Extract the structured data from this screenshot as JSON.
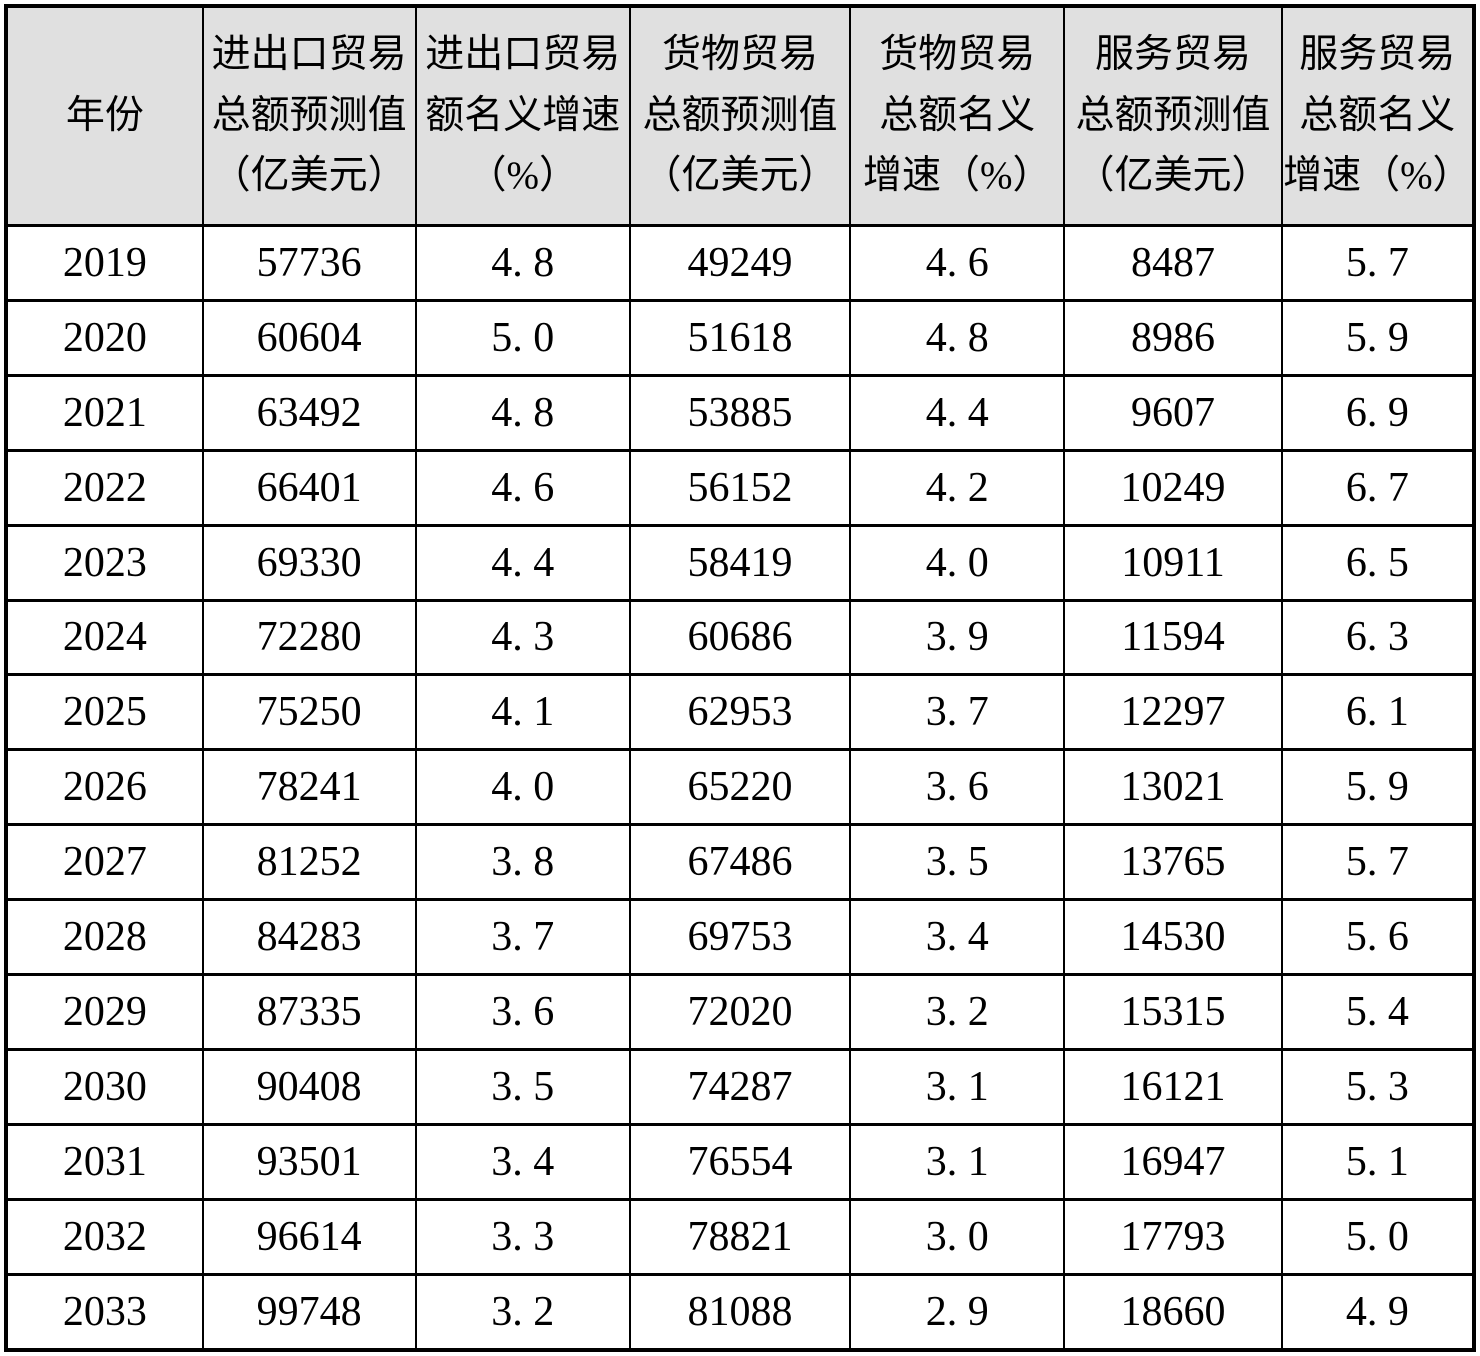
{
  "table": {
    "columns": [
      {
        "id": "year",
        "label": "年份"
      },
      {
        "id": "total_forecast",
        "label": "进出口贸易\n总额预测值\n（亿美元）"
      },
      {
        "id": "total_growth",
        "label": "进出口贸易\n额名义增速\n（%）"
      },
      {
        "id": "goods_forecast",
        "label": "货物贸易\n总额预测值\n（亿美元）"
      },
      {
        "id": "goods_growth",
        "label": "货物贸易\n总额名义\n增速（%）"
      },
      {
        "id": "services_forecast",
        "label": "服务贸易\n总额预测值\n（亿美元）"
      },
      {
        "id": "services_growth",
        "label": "服务贸易\n总额名义\n增速（%）"
      }
    ],
    "col_widths_pct": [
      13.4,
      14.5,
      14.6,
      15.0,
      14.6,
      14.8,
      13.1
    ],
    "rows": [
      [
        "2019",
        "57736",
        "4. 8",
        "49249",
        "4. 6",
        "8487",
        "5. 7"
      ],
      [
        "2020",
        "60604",
        "5. 0",
        "51618",
        "4. 8",
        "8986",
        "5. 9"
      ],
      [
        "2021",
        "63492",
        "4. 8",
        "53885",
        "4. 4",
        "9607",
        "6. 9"
      ],
      [
        "2022",
        "66401",
        "4. 6",
        "56152",
        "4. 2",
        "10249",
        "6. 7"
      ],
      [
        "2023",
        "69330",
        "4. 4",
        "58419",
        "4. 0",
        "10911",
        "6. 5"
      ],
      [
        "2024",
        "72280",
        "4. 3",
        "60686",
        "3. 9",
        "11594",
        "6. 3"
      ],
      [
        "2025",
        "75250",
        "4. 1",
        "62953",
        "3. 7",
        "12297",
        "6. 1"
      ],
      [
        "2026",
        "78241",
        "4. 0",
        "65220",
        "3. 6",
        "13021",
        "5. 9"
      ],
      [
        "2027",
        "81252",
        "3. 8",
        "67486",
        "3. 5",
        "13765",
        "5. 7"
      ],
      [
        "2028",
        "84283",
        "3. 7",
        "69753",
        "3. 4",
        "14530",
        "5. 6"
      ],
      [
        "2029",
        "87335",
        "3. 6",
        "72020",
        "3. 2",
        "15315",
        "5. 4"
      ],
      [
        "2030",
        "90408",
        "3. 5",
        "74287",
        "3. 1",
        "16121",
        "5. 3"
      ],
      [
        "2031",
        "93501",
        "3. 4",
        "76554",
        "3. 1",
        "16947",
        "5. 1"
      ],
      [
        "2032",
        "96614",
        "3. 3",
        "78821",
        "3. 0",
        "17793",
        "5. 0"
      ],
      [
        "2033",
        "99748",
        "3. 2",
        "81088",
        "2. 9",
        "18660",
        "4. 9"
      ]
    ],
    "colors": {
      "header_bg": "#e0e0e0",
      "body_bg": "#ffffff",
      "border": "#000000",
      "text": "#000000"
    }
  },
  "chart_data": {
    "type": "table",
    "title": "",
    "categories": [
      2019,
      2020,
      2021,
      2022,
      2023,
      2024,
      2025,
      2026,
      2027,
      2028,
      2029,
      2030,
      2031,
      2032,
      2033
    ],
    "series": [
      {
        "name": "进出口贸易总额预测值（亿美元）",
        "values": [
          57736,
          60604,
          63492,
          66401,
          69330,
          72280,
          75250,
          78241,
          81252,
          84283,
          87335,
          90408,
          93501,
          96614,
          99748
        ]
      },
      {
        "name": "进出口贸易额名义增速（%）",
        "values": [
          4.8,
          5.0,
          4.8,
          4.6,
          4.4,
          4.3,
          4.1,
          4.0,
          3.8,
          3.7,
          3.6,
          3.5,
          3.4,
          3.3,
          3.2
        ]
      },
      {
        "name": "货物贸易总额预测值（亿美元）",
        "values": [
          49249,
          51618,
          53885,
          56152,
          58419,
          60686,
          62953,
          65220,
          67486,
          69753,
          72020,
          74287,
          76554,
          78821,
          81088
        ]
      },
      {
        "name": "货物贸易总额名义增速（%）",
        "values": [
          4.6,
          4.8,
          4.4,
          4.2,
          4.0,
          3.9,
          3.7,
          3.6,
          3.5,
          3.4,
          3.2,
          3.1,
          3.1,
          3.0,
          2.9
        ]
      },
      {
        "name": "服务贸易总额预测值（亿美元）",
        "values": [
          8487,
          8986,
          9607,
          10249,
          10911,
          11594,
          12297,
          13021,
          13765,
          14530,
          15315,
          16121,
          16947,
          17793,
          18660
        ]
      },
      {
        "name": "服务贸易总额名义增速（%）",
        "values": [
          5.7,
          5.9,
          6.9,
          6.7,
          6.5,
          6.3,
          6.1,
          5.9,
          5.7,
          5.6,
          5.4,
          5.3,
          5.1,
          5.0,
          4.9
        ]
      }
    ]
  }
}
